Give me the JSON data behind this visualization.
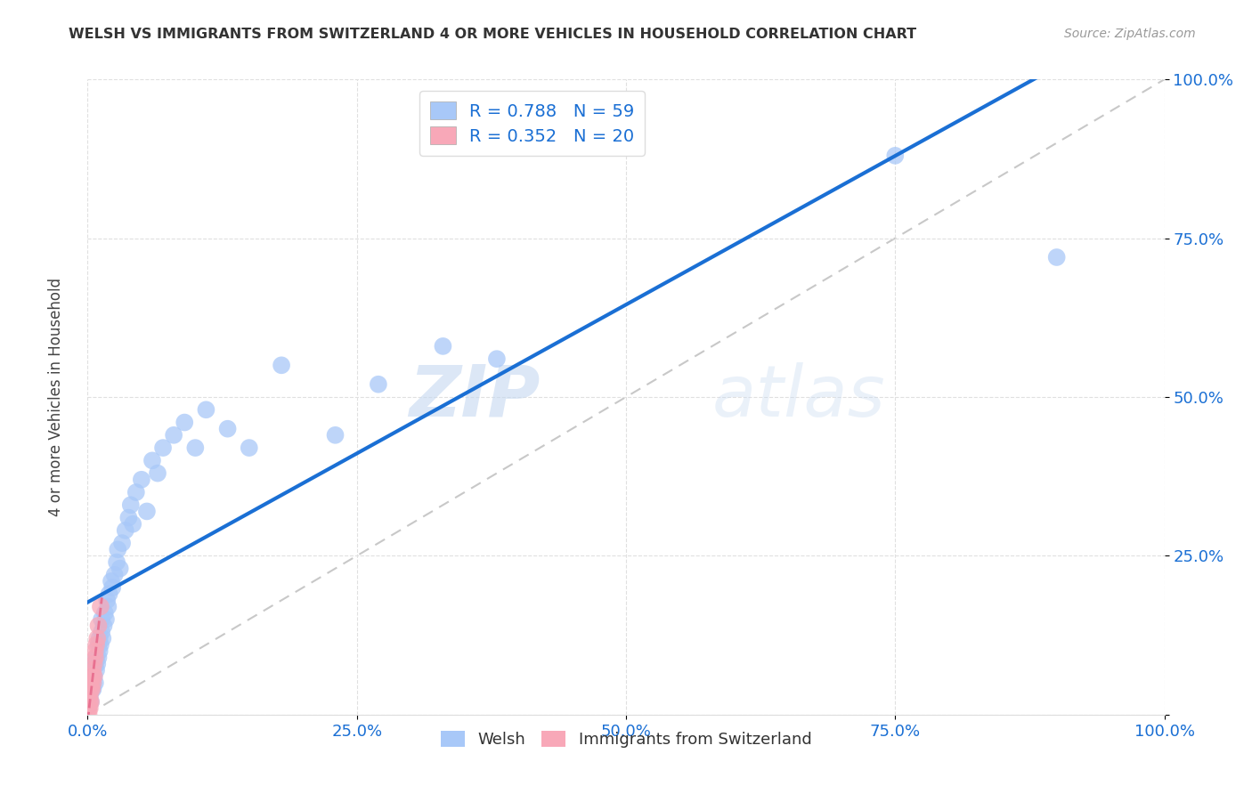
{
  "title": "WELSH VS IMMIGRANTS FROM SWITZERLAND 4 OR MORE VEHICLES IN HOUSEHOLD CORRELATION CHART",
  "source": "Source: ZipAtlas.com",
  "ylabel": "4 or more Vehicles in Household",
  "xlim": [
    0,
    1.0
  ],
  "ylim": [
    0,
    1.0
  ],
  "welsh_R": 0.788,
  "welsh_N": 59,
  "swiss_R": 0.352,
  "swiss_N": 20,
  "welsh_color": "#a8c8f8",
  "swiss_color": "#f8a8b8",
  "welsh_line_color": "#1a6fd4",
  "swiss_line_color": "#e87090",
  "diagonal_color": "#c8c8c8",
  "watermark_zip": "ZIP",
  "watermark_atlas": "atlas",
  "background_color": "#ffffff",
  "welsh_x": [
    0.002,
    0.003,
    0.003,
    0.004,
    0.004,
    0.005,
    0.005,
    0.005,
    0.006,
    0.006,
    0.007,
    0.007,
    0.008,
    0.008,
    0.009,
    0.01,
    0.01,
    0.011,
    0.011,
    0.012,
    0.013,
    0.013,
    0.014,
    0.015,
    0.016,
    0.017,
    0.018,
    0.019,
    0.02,
    0.022,
    0.023,
    0.025,
    0.027,
    0.028,
    0.03,
    0.032,
    0.035,
    0.038,
    0.04,
    0.042,
    0.045,
    0.05,
    0.055,
    0.06,
    0.065,
    0.07,
    0.08,
    0.09,
    0.1,
    0.11,
    0.13,
    0.15,
    0.18,
    0.23,
    0.27,
    0.33,
    0.38,
    0.75,
    0.9
  ],
  "welsh_y": [
    0.03,
    0.05,
    0.02,
    0.04,
    0.06,
    0.04,
    0.05,
    0.07,
    0.06,
    0.08,
    0.05,
    0.08,
    0.07,
    0.09,
    0.08,
    0.09,
    0.11,
    0.1,
    0.12,
    0.11,
    0.13,
    0.15,
    0.12,
    0.14,
    0.16,
    0.15,
    0.18,
    0.17,
    0.19,
    0.21,
    0.2,
    0.22,
    0.24,
    0.26,
    0.23,
    0.27,
    0.29,
    0.31,
    0.33,
    0.3,
    0.35,
    0.37,
    0.32,
    0.4,
    0.38,
    0.42,
    0.44,
    0.46,
    0.42,
    0.48,
    0.45,
    0.42,
    0.55,
    0.44,
    0.52,
    0.58,
    0.56,
    0.88,
    0.72
  ],
  "swiss_x": [
    0.001,
    0.001,
    0.002,
    0.002,
    0.002,
    0.003,
    0.003,
    0.003,
    0.004,
    0.004,
    0.005,
    0.005,
    0.006,
    0.006,
    0.007,
    0.007,
    0.008,
    0.009,
    0.01,
    0.012
  ],
  "swiss_y": [
    0.0,
    0.01,
    0.02,
    0.01,
    0.03,
    0.02,
    0.04,
    0.05,
    0.04,
    0.06,
    0.05,
    0.07,
    0.06,
    0.08,
    0.09,
    0.1,
    0.11,
    0.12,
    0.14,
    0.17
  ]
}
